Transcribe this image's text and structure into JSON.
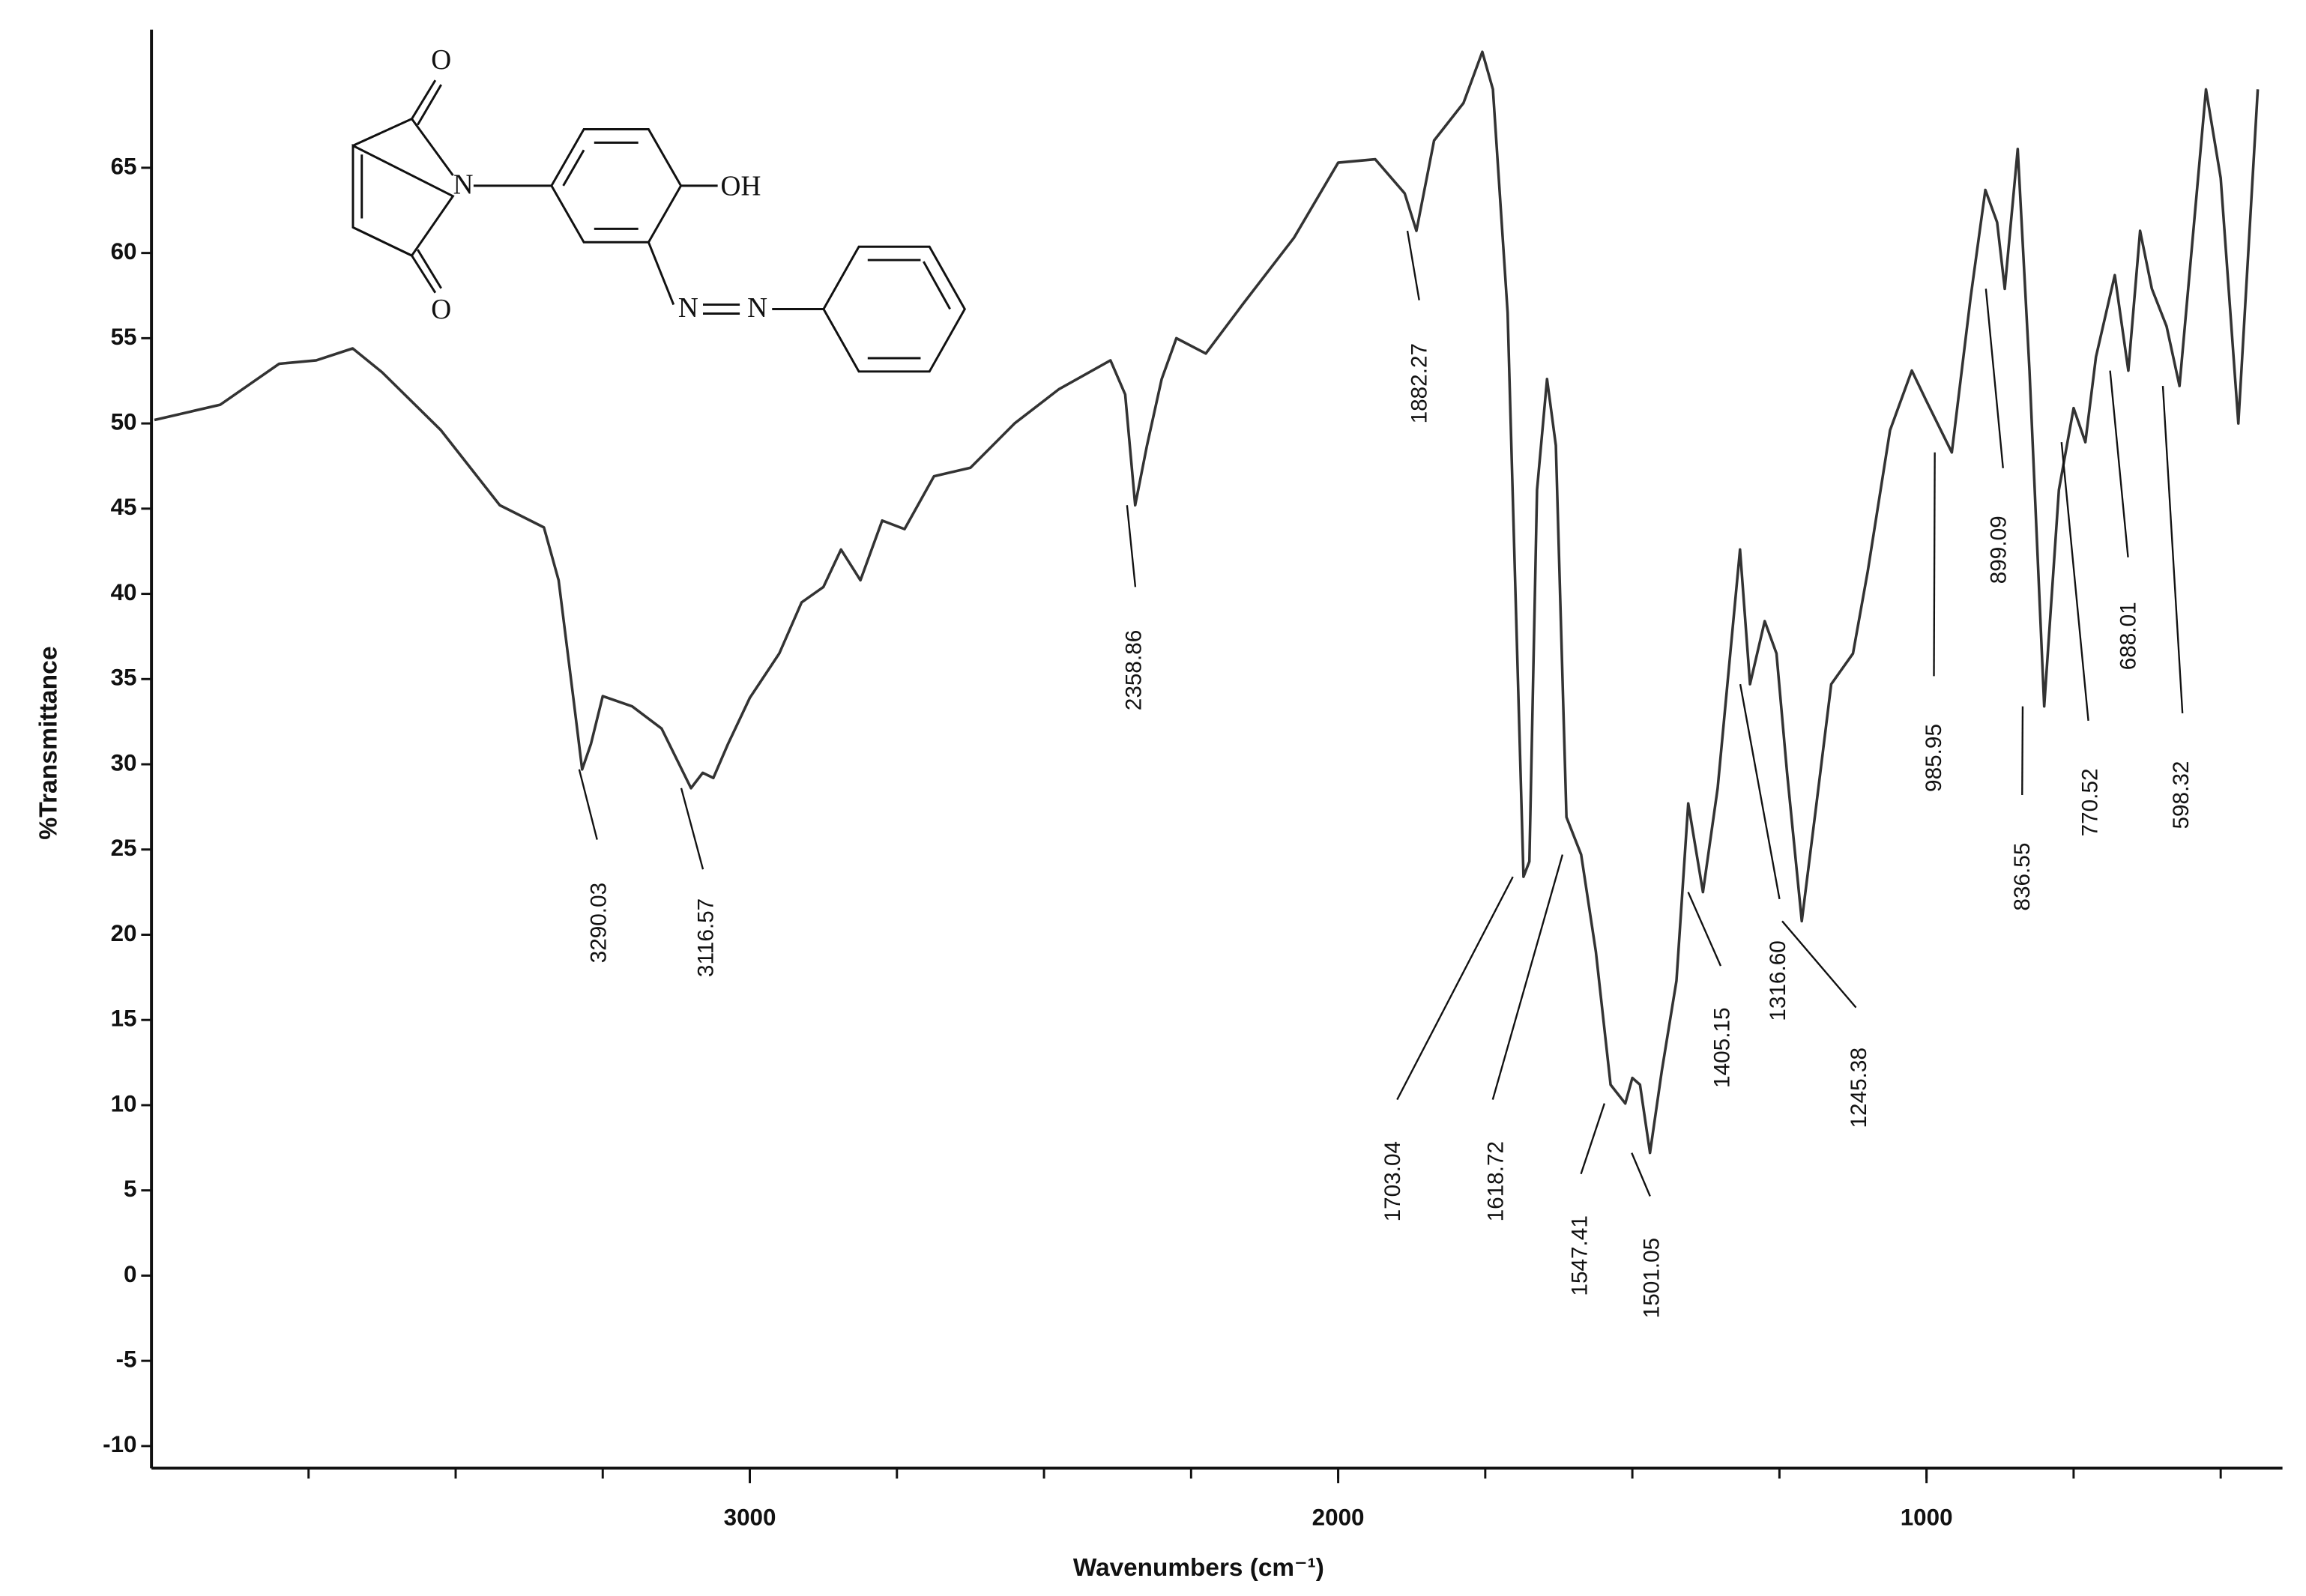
{
  "chart_data": {
    "type": "line",
    "x_label": "Wavenumbers (cm⁻¹)",
    "y_label": "%Transmittance",
    "color": "#333333",
    "xlim": [
      4017,
      395
    ],
    "ylim": [
      -11.3,
      73.1
    ],
    "xticks": [
      3000,
      2000,
      1000
    ],
    "xminor_ticks": [
      3750,
      3500,
      3250,
      3000,
      2750,
      2500,
      2250,
      2000,
      1750,
      1500,
      1250,
      1000,
      750,
      500
    ],
    "yticks": [
      -10,
      -5,
      0,
      5,
      10,
      15,
      20,
      25,
      30,
      35,
      40,
      45,
      50,
      55,
      60,
      65
    ],
    "x": [
      4012,
      3900,
      3800,
      3737,
      3675,
      3625,
      3525,
      3425,
      3350,
      3325,
      3300,
      3285,
      3270,
      3250,
      3200,
      3150,
      3100,
      3080,
      3062,
      3037,
      3000,
      2950,
      2912,
      2875,
      2845,
      2812,
      2775,
      2737,
      2687,
      2625,
      2550,
      2475,
      2387,
      2362,
      2345,
      2325,
      2300,
      2275,
      2225,
      2162,
      2075,
      2000,
      1937,
      1887,
      1867,
      1837,
      1787,
      1755,
      1737,
      1712,
      1700,
      1685,
      1675,
      1662,
      1645,
      1630,
      1612,
      1587,
      1562,
      1537,
      1512,
      1500,
      1487,
      1470,
      1450,
      1425,
      1405,
      1380,
      1355,
      1317,
      1300,
      1275,
      1255,
      1237,
      1212,
      1187,
      1162,
      1125,
      1100,
      1062,
      1025,
      1000,
      957,
      925,
      900,
      880,
      867,
      845,
      825,
      800,
      775,
      750,
      730,
      712,
      680,
      657,
      637,
      617,
      592,
      570,
      525,
      500,
      470,
      437
    ],
    "values": [
      50.2,
      51.1,
      53.5,
      53.7,
      54.4,
      53.0,
      49.6,
      45.2,
      43.9,
      40.8,
      33.9,
      29.7,
      31.2,
      34.0,
      33.4,
      32.1,
      28.6,
      29.5,
      29.2,
      31.2,
      33.9,
      36.5,
      39.5,
      40.4,
      42.6,
      40.8,
      44.3,
      43.8,
      46.9,
      47.4,
      50.0,
      52.0,
      53.7,
      51.7,
      45.2,
      48.7,
      52.6,
      55.0,
      54.1,
      57.0,
      60.9,
      65.3,
      65.5,
      63.5,
      61.3,
      66.6,
      68.8,
      71.8,
      69.6,
      56.5,
      41.7,
      23.4,
      24.3,
      46.1,
      52.6,
      48.7,
      26.9,
      24.7,
      19.0,
      11.2,
      10.1,
      11.6,
      11.2,
      7.2,
      12.0,
      17.3,
      27.7,
      22.5,
      28.6,
      42.6,
      34.7,
      38.4,
      36.5,
      29.5,
      20.8,
      27.7,
      34.7,
      36.5,
      41.3,
      49.6,
      53.1,
      51.3,
      48.3,
      57.4,
      63.7,
      61.8,
      57.9,
      66.1,
      53.1,
      33.4,
      46.1,
      50.9,
      48.9,
      53.9,
      58.7,
      53.1,
      61.3,
      57.9,
      55.7,
      52.2,
      69.6,
      64.4,
      50.0,
      69.6
    ],
    "annotations": [
      {
        "label": "3290.03",
        "x": 3290.03,
        "y": 29.7
      },
      {
        "label": "3116.57",
        "x": 3116.57,
        "y": 28.6
      },
      {
        "label": "2358.86",
        "x": 2358.86,
        "y": 45.2
      },
      {
        "label": "1882.27",
        "x": 1882.27,
        "y": 61.3
      },
      {
        "label": "1703.04",
        "x": 1703.04,
        "y": 23.4
      },
      {
        "label": "1618.72",
        "x": 1618.72,
        "y": 24.7
      },
      {
        "label": "1547.41",
        "x": 1547.41,
        "y": 10.1
      },
      {
        "label": "1501.05",
        "x": 1501.05,
        "y": 7.2
      },
      {
        "label": "1405.15",
        "x": 1405.15,
        "y": 22.5
      },
      {
        "label": "1316.60",
        "x": 1316.6,
        "y": 34.7
      },
      {
        "label": "1245.38",
        "x": 1245.38,
        "y": 20.8
      },
      {
        "label": "985.95",
        "x": 985.95,
        "y": 48.3
      },
      {
        "label": "899.09",
        "x": 899.09,
        "y": 57.9
      },
      {
        "label": "836.55",
        "x": 836.55,
        "y": 33.4
      },
      {
        "label": "770.52",
        "x": 770.52,
        "y": 48.9
      },
      {
        "label": "688.01",
        "x": 688.01,
        "y": 53.1
      },
      {
        "label": "598.32",
        "x": 598.32,
        "y": 52.2
      }
    ],
    "structure_labels": [
      "O",
      "N",
      "O",
      "OH",
      "N",
      "N"
    ]
  }
}
